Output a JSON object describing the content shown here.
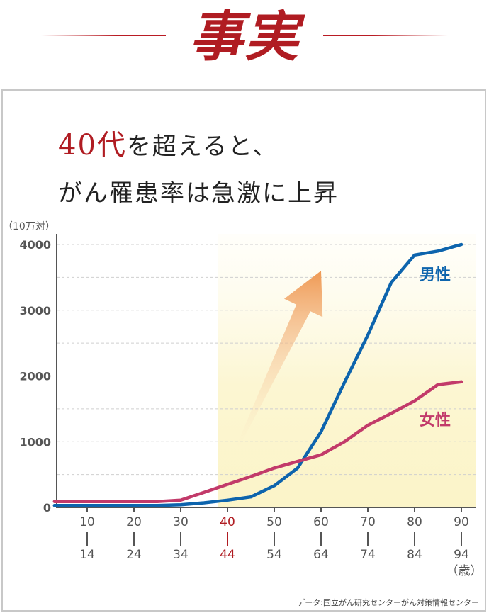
{
  "header": {
    "title": "事実"
  },
  "headline": {
    "highlight": "40代",
    "line1_rest": "を超えると、",
    "line2": "がん罹患率は急激に上昇"
  },
  "source": "データ:国立がん研究センターがん対策情報センター",
  "colors": {
    "accent": "#b01c22",
    "male": "#0d64ad",
    "female": "#c23a6a",
    "arrow": "#f0a060",
    "highlight_band": "#fcf8d8"
  },
  "chart_data": {
    "type": "line",
    "unit_label": "（10万対）",
    "age_unit_label": "（歳）",
    "ylim": [
      0,
      4000
    ],
    "yticks": [
      0,
      1000,
      2000,
      3000,
      4000
    ],
    "grid": true,
    "age_groups": [
      {
        "top": "10",
        "bottom": "14",
        "highlight": false
      },
      {
        "top": "20",
        "bottom": "24",
        "highlight": false
      },
      {
        "top": "30",
        "bottom": "34",
        "highlight": false
      },
      {
        "top": "40",
        "bottom": "44",
        "highlight": true
      },
      {
        "top": "50",
        "bottom": "54",
        "highlight": false
      },
      {
        "top": "60",
        "bottom": "64",
        "highlight": false
      },
      {
        "top": "70",
        "bottom": "74",
        "highlight": false
      },
      {
        "top": "80",
        "bottom": "84",
        "highlight": false
      },
      {
        "top": "90",
        "bottom": "94",
        "highlight": false
      }
    ],
    "x": [
      5,
      7,
      12,
      17,
      22,
      27,
      32,
      37,
      42,
      47,
      52,
      57,
      62,
      67,
      72,
      77,
      82,
      87,
      92
    ],
    "series": [
      {
        "name": "男性",
        "color": "#0d64ad",
        "values": [
          30,
          30,
          30,
          30,
          30,
          30,
          40,
          70,
          110,
          160,
          330,
          600,
          1150,
          1900,
          2620,
          3420,
          3840,
          3900,
          4000
        ]
      },
      {
        "name": "女性",
        "color": "#c23a6a",
        "values": [
          90,
          90,
          90,
          90,
          90,
          90,
          110,
          230,
          350,
          470,
          600,
          700,
          800,
          1000,
          1250,
          1430,
          1620,
          1870,
          1910
        ]
      }
    ]
  }
}
